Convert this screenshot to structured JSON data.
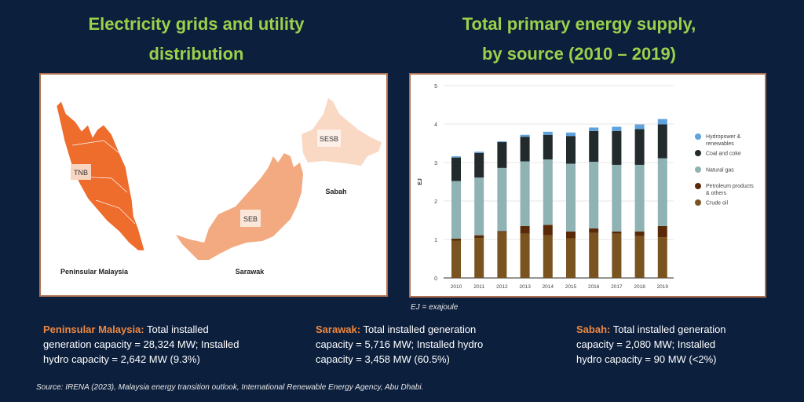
{
  "left_title": [
    "Electricity grids and utility",
    "distribution"
  ],
  "right_title": [
    "Total primary energy supply,",
    "by source (2010 – 2019)"
  ],
  "map": {
    "region_labels": [
      "Peninsular Malaysia",
      "Sarawak",
      "Sabah"
    ],
    "utility_labels": [
      "TNB",
      "SEB",
      "SESB"
    ],
    "colors": {
      "peninsular": "#ee6c2c",
      "sarawak": "#f3aa80",
      "sabah": "#f9d8c4"
    }
  },
  "chart_data": {
    "type": "bar",
    "stacked": true,
    "categories": [
      "2010",
      "2011",
      "2012",
      "2013",
      "2014",
      "2015",
      "2016",
      "2017",
      "2018",
      "2019"
    ],
    "ylabel": "EJ",
    "ylim": [
      0,
      5
    ],
    "yticks": [
      "0",
      "1",
      "2",
      "3",
      "4",
      "5"
    ],
    "grid": true,
    "legend_position": "right",
    "series": [
      {
        "name": "Crude oil",
        "color": "#7a5420",
        "values": [
          0.97,
          1.04,
          1.19,
          1.15,
          1.11,
          1.03,
          1.17,
          1.15,
          1.09,
          1.06
        ]
      },
      {
        "name": "Petroleum products & others",
        "color": "#5a2a08",
        "values": [
          0.05,
          0.07,
          0.03,
          0.2,
          0.27,
          0.18,
          0.12,
          0.06,
          0.12,
          0.29
        ]
      },
      {
        "name": "Natural gas",
        "color": "#8fb2b2",
        "values": [
          1.5,
          1.5,
          1.64,
          1.68,
          1.7,
          1.76,
          1.73,
          1.73,
          1.73,
          1.76
        ]
      },
      {
        "name": "Coal and coke",
        "color": "#222a2c",
        "values": [
          0.61,
          0.64,
          0.67,
          0.64,
          0.64,
          0.72,
          0.8,
          0.88,
          0.93,
          0.88
        ]
      },
      {
        "name": "Hydropower & renewables",
        "color": "#5ea2de",
        "values": [
          0.03,
          0.03,
          0.02,
          0.05,
          0.08,
          0.09,
          0.09,
          0.11,
          0.12,
          0.14
        ]
      }
    ],
    "legend_order": [
      "Hydropower & renewables",
      "Coal and coke",
      "Natural gas",
      "Petroleum products & others",
      "Crude oil"
    ],
    "footnote": "EJ = exajoule"
  },
  "info": [
    {
      "label": "Peninsular Malaysia:",
      "lines": [
        " Total installed",
        "generation capacity = 28,324 MW; Installed",
        "hydro capacity = 2,642 MW (9.3%)"
      ]
    },
    {
      "label": "Sarawak:",
      "lines": [
        " Total installed generation",
        "capacity = 5,716 MW; Installed hydro",
        "capacity = 3,458 MW (60.5%)"
      ]
    },
    {
      "label": "Sabah:",
      "lines": [
        " Total installed generation",
        "capacity = 2,080 MW; Installed",
        "hydro capacity = 90 MW (<2%)"
      ]
    }
  ],
  "source": "Source: IRENA (2023), Malaysia energy transition outlook, International Renewable Energy Agency, Abu Dhabi."
}
